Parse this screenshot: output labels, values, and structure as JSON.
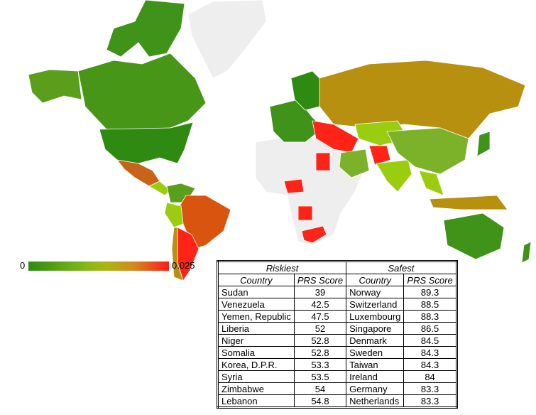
{
  "legend": {
    "min": 0,
    "max": 0.025
  },
  "table": {
    "groups": [
      "Riskiest",
      "Safest"
    ],
    "columns": [
      "Country",
      "PRS Score",
      "Country",
      "PRS Score"
    ],
    "rows": [
      [
        "Sudan",
        39,
        "Norway",
        89.3
      ],
      [
        "Venezuela",
        42.5,
        "Switzerland",
        88.5
      ],
      [
        "Yemen, Republic",
        47.5,
        "Luxembourg",
        88.3
      ],
      [
        "Liberia",
        52,
        "Singapore",
        86.5
      ],
      [
        "Niger",
        52.8,
        "Denmark",
        84.5
      ],
      [
        "Somalia",
        52.8,
        "Sweden",
        84.3
      ],
      [
        "Korea, D.P.R.",
        53.3,
        "Taiwan",
        84.3
      ],
      [
        "Syria",
        53.5,
        "Ireland",
        84
      ],
      [
        "Zimbabwe",
        54,
        "Germany",
        83.3
      ],
      [
        "Lebanon",
        54.8,
        "Netherlands",
        83.3
      ]
    ]
  }
}
